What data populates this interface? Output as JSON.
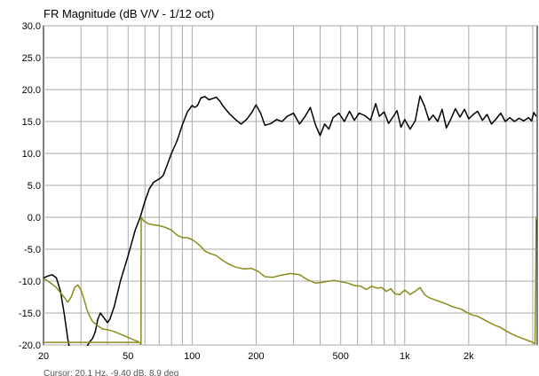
{
  "chart_data": {
    "type": "line",
    "title": "FR Magnitude (dB V/V - 1/12 oct)",
    "xlabel": "",
    "ylabel": "",
    "x_scale": "log",
    "xlim": [
      20,
      4200
    ],
    "ylim": [
      -20,
      30
    ],
    "grid": true,
    "y_ticks": [
      {
        "value": 30,
        "label": "30.0"
      },
      {
        "value": 25,
        "label": "25.0"
      },
      {
        "value": 20,
        "label": "20.0"
      },
      {
        "value": 15,
        "label": "15.0"
      },
      {
        "value": 10,
        "label": "10.0"
      },
      {
        "value": 5,
        "label": "5.0"
      },
      {
        "value": 0,
        "label": "0.0"
      },
      {
        "value": -5,
        "label": "-5.0"
      },
      {
        "value": -10,
        "label": "-10.0"
      },
      {
        "value": -15,
        "label": "-15.0"
      },
      {
        "value": -20,
        "label": "-20.0"
      }
    ],
    "x_ticks": [
      {
        "value": 20,
        "label": "20"
      },
      {
        "value": 50,
        "label": "50"
      },
      {
        "value": 100,
        "label": "100"
      },
      {
        "value": 200,
        "label": "200"
      },
      {
        "value": 500,
        "label": "500"
      },
      {
        "value": 1000,
        "label": "1k"
      },
      {
        "value": 2000,
        "label": "2k"
      }
    ],
    "x_minor_grid": [
      30,
      40,
      60,
      70,
      80,
      90,
      300,
      400,
      600,
      700,
      800,
      900,
      3000,
      4000
    ],
    "series": [
      {
        "color": "#000000",
        "points": [
          [
            20,
            -9.5
          ],
          [
            21,
            -9.2
          ],
          [
            22,
            -9.0
          ],
          [
            23,
            -9.5
          ],
          [
            24,
            -11.5
          ],
          [
            25,
            -15
          ],
          [
            26,
            -19
          ],
          [
            27,
            -22
          ],
          [
            29,
            -23
          ],
          [
            31,
            -21
          ],
          [
            33,
            -19.5
          ],
          [
            34,
            -19
          ],
          [
            35,
            -18
          ],
          [
            36,
            -16
          ],
          [
            37,
            -15
          ],
          [
            38,
            -15.5
          ],
          [
            39,
            -16
          ],
          [
            40,
            -16.5
          ],
          [
            41,
            -16
          ],
          [
            43,
            -14
          ],
          [
            46,
            -10
          ],
          [
            50,
            -6
          ],
          [
            54,
            -2
          ],
          [
            57,
            0
          ],
          [
            60,
            2.5
          ],
          [
            63,
            4.5
          ],
          [
            66,
            5.5
          ],
          [
            70,
            6
          ],
          [
            73,
            6.5
          ],
          [
            76,
            8
          ],
          [
            80,
            10
          ],
          [
            85,
            12
          ],
          [
            90,
            14.5
          ],
          [
            95,
            16.5
          ],
          [
            100,
            17.5
          ],
          [
            103,
            17.2
          ],
          [
            106,
            17.5
          ],
          [
            110,
            18.7
          ],
          [
            115,
            18.9
          ],
          [
            120,
            18.4
          ],
          [
            125,
            18.6
          ],
          [
            130,
            18.8
          ],
          [
            135,
            18.2
          ],
          [
            140,
            17.4
          ],
          [
            150,
            16.2
          ],
          [
            160,
            15.3
          ],
          [
            170,
            14.6
          ],
          [
            180,
            15.3
          ],
          [
            190,
            16.3
          ],
          [
            200,
            17.6
          ],
          [
            210,
            16.3
          ],
          [
            220,
            14.4
          ],
          [
            235,
            14.7
          ],
          [
            250,
            15.3
          ],
          [
            265,
            15.0
          ],
          [
            280,
            15.8
          ],
          [
            300,
            16.3
          ],
          [
            320,
            14.6
          ],
          [
            340,
            15.8
          ],
          [
            360,
            17.2
          ],
          [
            380,
            14.5
          ],
          [
            400,
            12.8
          ],
          [
            420,
            14.6
          ],
          [
            440,
            13.8
          ],
          [
            460,
            15.6
          ],
          [
            490,
            16.3
          ],
          [
            520,
            15.0
          ],
          [
            550,
            16.6
          ],
          [
            580,
            15.2
          ],
          [
            610,
            16.3
          ],
          [
            650,
            15.9
          ],
          [
            690,
            15.2
          ],
          [
            730,
            17.8
          ],
          [
            760,
            15.8
          ],
          [
            800,
            16.5
          ],
          [
            840,
            14.7
          ],
          [
            880,
            15.7
          ],
          [
            920,
            16.7
          ],
          [
            960,
            14.1
          ],
          [
            1000,
            15.3
          ],
          [
            1060,
            13.8
          ],
          [
            1120,
            15.1
          ],
          [
            1180,
            19.0
          ],
          [
            1240,
            17.4
          ],
          [
            1300,
            15.2
          ],
          [
            1360,
            16.0
          ],
          [
            1430,
            15.0
          ],
          [
            1500,
            16.9
          ],
          [
            1570,
            14.0
          ],
          [
            1650,
            15.4
          ],
          [
            1730,
            17.0
          ],
          [
            1820,
            15.7
          ],
          [
            1910,
            16.9
          ],
          [
            2000,
            15.4
          ],
          [
            2100,
            16.1
          ],
          [
            2200,
            16.6
          ],
          [
            2320,
            15.2
          ],
          [
            2440,
            16.1
          ],
          [
            2560,
            14.6
          ],
          [
            2690,
            15.4
          ],
          [
            2830,
            16.3
          ],
          [
            2970,
            15.0
          ],
          [
            3120,
            15.6
          ],
          [
            3280,
            15.0
          ],
          [
            3450,
            15.5
          ],
          [
            3630,
            15.1
          ],
          [
            3820,
            15.6
          ],
          [
            3950,
            15.1
          ],
          [
            4050,
            16.4
          ],
          [
            4150,
            15.8
          ]
        ]
      },
      {
        "color": "#8b8b1a",
        "points": [
          [
            20,
            -9.6
          ],
          [
            21,
            -10.0
          ],
          [
            22,
            -10.5
          ],
          [
            23,
            -11
          ],
          [
            24,
            -11.8
          ],
          [
            25,
            -12.5
          ],
          [
            26,
            -13.3
          ],
          [
            27,
            -12.5
          ],
          [
            28,
            -11
          ],
          [
            29,
            -10.6
          ],
          [
            30,
            -11.4
          ],
          [
            31,
            -12.8
          ],
          [
            32,
            -14.5
          ],
          [
            33,
            -15.5
          ],
          [
            34,
            -16.3
          ],
          [
            36,
            -17
          ],
          [
            38,
            -17.5
          ],
          [
            40,
            -17.6
          ],
          [
            43,
            -17.9
          ],
          [
            46,
            -18.3
          ],
          [
            50,
            -18.8
          ],
          [
            53,
            -19.2
          ],
          [
            56,
            -19.5
          ],
          [
            57.5,
            -19.9
          ],
          [
            57.6,
            0
          ],
          [
            59,
            -0.5
          ],
          [
            62,
            -1.0
          ],
          [
            66,
            -1.2
          ],
          [
            70,
            -1.3
          ],
          [
            75,
            -1.6
          ],
          [
            80,
            -2.0
          ],
          [
            85,
            -2.8
          ],
          [
            90,
            -3.2
          ],
          [
            95,
            -3.2
          ],
          [
            100,
            -3.5
          ],
          [
            105,
            -4.0
          ],
          [
            110,
            -4.6
          ],
          [
            115,
            -5.3
          ],
          [
            120,
            -5.6
          ],
          [
            130,
            -6.0
          ],
          [
            140,
            -6.8
          ],
          [
            150,
            -7.4
          ],
          [
            160,
            -7.8
          ],
          [
            175,
            -8.1
          ],
          [
            190,
            -8.0
          ],
          [
            205,
            -8.5
          ],
          [
            220,
            -9.3
          ],
          [
            240,
            -9.4
          ],
          [
            260,
            -9.1
          ],
          [
            290,
            -8.8
          ],
          [
            320,
            -9.0
          ],
          [
            350,
            -9.8
          ],
          [
            380,
            -10.3
          ],
          [
            410,
            -10.2
          ],
          [
            440,
            -10.0
          ],
          [
            470,
            -9.9
          ],
          [
            500,
            -10.1
          ],
          [
            540,
            -10.3
          ],
          [
            580,
            -10.7
          ],
          [
            620,
            -10.8
          ],
          [
            660,
            -11.3
          ],
          [
            700,
            -10.8
          ],
          [
            740,
            -11.1
          ],
          [
            780,
            -11.0
          ],
          [
            820,
            -11.6
          ],
          [
            860,
            -11.2
          ],
          [
            900,
            -12.0
          ],
          [
            950,
            -12.1
          ],
          [
            1000,
            -11.4
          ],
          [
            1060,
            -12.1
          ],
          [
            1120,
            -11.6
          ],
          [
            1180,
            -11.0
          ],
          [
            1240,
            -12.1
          ],
          [
            1300,
            -12.6
          ],
          [
            1380,
            -12.9
          ],
          [
            1460,
            -13.2
          ],
          [
            1550,
            -13.5
          ],
          [
            1650,
            -13.9
          ],
          [
            1750,
            -14.2
          ],
          [
            1850,
            -14.4
          ],
          [
            1960,
            -14.9
          ],
          [
            2080,
            -15.3
          ],
          [
            2200,
            -15.5
          ],
          [
            2350,
            -16.0
          ],
          [
            2500,
            -16.5
          ],
          [
            2650,
            -16.9
          ],
          [
            2800,
            -17.2
          ],
          [
            3000,
            -17.8
          ],
          [
            3200,
            -18.3
          ],
          [
            3400,
            -18.7
          ],
          [
            3600,
            -19.0
          ],
          [
            3800,
            -19.3
          ],
          [
            4000,
            -19.6
          ],
          [
            4100,
            -19.8
          ],
          [
            4130,
            -10.5
          ],
          [
            4150,
            0
          ],
          [
            4200,
            -0.4
          ]
        ]
      },
      {
        "color": "#8b8b1a",
        "points": [
          [
            20,
            -19.6
          ],
          [
            40,
            -19.6
          ],
          [
            50,
            -19.6
          ],
          [
            56,
            -19.6
          ]
        ]
      }
    ],
    "annotations": [
      {
        "text": "Cursor: 20.1 Hz, -9.40 dB, 8.9 deg"
      }
    ]
  }
}
